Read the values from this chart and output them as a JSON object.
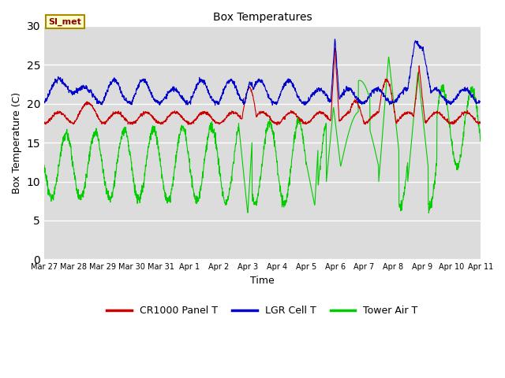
{
  "title": "Box Temperatures",
  "xlabel": "Time",
  "ylabel": "Box Temperature (C)",
  "ylim": [
    0,
    30
  ],
  "yticks": [
    0,
    5,
    10,
    15,
    20,
    25,
    30
  ],
  "bg_color": "#dcdcdc",
  "fig_color": "#ffffff",
  "label_SI": "SI_met",
  "series": {
    "cr1000": {
      "color": "#cc0000",
      "label": "CR1000 Panel T"
    },
    "lgr": {
      "color": "#0000cc",
      "label": "LGR Cell T"
    },
    "tower": {
      "color": "#00cc00",
      "label": "Tower Air T"
    }
  },
  "xtick_labels": [
    "Mar 27",
    "Mar 28",
    "Mar 29",
    "Mar 30",
    "Mar 31",
    "Apr 1",
    "Apr 2",
    "Apr 3",
    "Apr 4",
    "Apr 5",
    "Apr 6",
    "Apr 7",
    "Apr 8",
    "Apr 9",
    "Apr 10",
    "Apr 11"
  ],
  "n_points": 2000
}
